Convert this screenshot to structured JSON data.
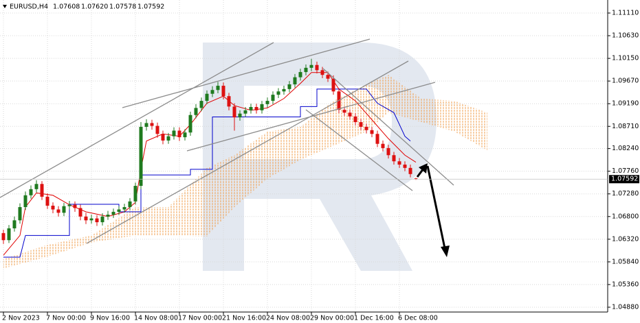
{
  "chart_data": {
    "type": "candlestick",
    "symbol": "EURUSD,H4",
    "ohlc_header": [
      {
        "value": 1.07608,
        "label": "1.07608"
      },
      {
        "value": 1.0762,
        "label": "1.07620"
      },
      {
        "value": 1.07578,
        "label": "1.07578"
      },
      {
        "value": 1.07592,
        "label": "1.07592"
      }
    ],
    "last_price": {
      "value": 1.07592,
      "label": "1.07592"
    },
    "categories": [
      "2 Nov 2023",
      null,
      null,
      null,
      null,
      null,
      null,
      null,
      "7 Nov 00:00",
      null,
      null,
      null,
      null,
      null,
      null,
      null,
      "9 Nov 16:00",
      null,
      null,
      null,
      null,
      null,
      null,
      null,
      "14 Nov 08:00",
      null,
      null,
      null,
      null,
      null,
      null,
      null,
      "17 Nov 00:00",
      null,
      null,
      null,
      null,
      null,
      null,
      null,
      "21 Nov 16:00",
      null,
      null,
      null,
      null,
      null,
      null,
      null,
      "24 Nov 08:00",
      null,
      null,
      null,
      null,
      null,
      null,
      null,
      "29 Nov 00:00",
      null,
      null,
      null,
      null,
      null,
      null,
      null,
      "1 Dec 16:00",
      null,
      null,
      null,
      null,
      null,
      null,
      null,
      "6 Dec 08:00",
      null,
      null,
      null
    ],
    "open": [
      1.0645,
      1.063,
      1.0655,
      1.0672,
      1.07,
      1.0725,
      1.0738,
      1.0749,
      1.0722,
      1.0703,
      1.0695,
      1.0688,
      1.0702,
      1.0705,
      1.0698,
      1.068,
      1.0672,
      1.0676,
      1.0668,
      1.068,
      1.0684,
      1.069,
      1.0695,
      1.07,
      1.0712,
      1.0745,
      1.087,
      1.0878,
      1.0872,
      1.0855,
      1.0841,
      1.085,
      1.0862,
      1.0848,
      1.0858,
      1.0895,
      1.091,
      1.0925,
      1.094,
      1.0948,
      1.0957,
      1.0935,
      1.0913,
      1.089,
      1.0898,
      1.0905,
      1.0912,
      1.0905,
      1.0918,
      1.0925,
      1.0938,
      1.0945,
      1.095,
      1.096,
      1.0975,
      1.0986,
      1.0995,
      1.1001,
      1.099,
      1.098,
      1.0972,
      1.0945,
      1.0906,
      1.09,
      1.0892,
      1.088,
      1.087,
      1.0863,
      1.0855,
      1.0834,
      1.0825,
      1.081,
      1.0797,
      1.079,
      1.0783,
      1.07608
    ],
    "high": [
      1.0652,
      1.0662,
      1.068,
      1.0708,
      1.0733,
      1.0746,
      1.0757,
      1.0755,
      1.0729,
      1.071,
      1.0702,
      1.0709,
      1.0713,
      1.0712,
      1.0705,
      1.0688,
      1.0684,
      1.0683,
      1.0687,
      1.0692,
      1.0697,
      1.0702,
      1.0707,
      1.0719,
      1.0752,
      1.088,
      1.0886,
      1.0885,
      1.0879,
      1.0862,
      1.0857,
      1.0869,
      1.0869,
      1.0865,
      1.0902,
      1.0918,
      1.0932,
      1.0947,
      1.0956,
      1.0965,
      1.0964,
      1.0942,
      1.092,
      1.0905,
      1.0912,
      1.0919,
      1.0919,
      1.0925,
      1.0932,
      1.0945,
      1.0952,
      1.0957,
      1.0967,
      1.0982,
      1.0993,
      1.1002,
      1.1014,
      1.1008,
      1.0997,
      1.0987,
      1.0979,
      1.0952,
      1.0913,
      1.0907,
      1.0899,
      1.0887,
      1.0877,
      1.087,
      1.0862,
      1.0841,
      1.0832,
      1.0817,
      1.0804,
      1.0797,
      1.079,
      1.0762
    ],
    "low": [
      1.0622,
      1.0624,
      1.0648,
      1.0665,
      1.0694,
      1.0718,
      1.0731,
      1.0715,
      1.0696,
      1.0687,
      1.068,
      1.0681,
      1.0695,
      1.069,
      1.0672,
      1.0664,
      1.0665,
      1.066,
      1.0661,
      1.0673,
      1.0677,
      1.0683,
      1.0688,
      1.0693,
      1.0705,
      1.0738,
      1.0862,
      1.0864,
      1.0847,
      1.0833,
      1.0834,
      1.0843,
      1.084,
      1.0841,
      1.0851,
      1.0888,
      1.0903,
      1.0918,
      1.0933,
      1.0941,
      1.0928,
      1.0905,
      1.0862,
      1.0883,
      1.0891,
      1.0898,
      1.0898,
      1.0898,
      1.0911,
      1.0918,
      1.0931,
      1.0938,
      1.0943,
      1.0953,
      1.0968,
      1.0979,
      1.0988,
      1.0983,
      1.0973,
      1.0965,
      1.0938,
      1.0899,
      1.0893,
      1.0885,
      1.0873,
      1.0863,
      1.0856,
      1.0848,
      1.0827,
      1.0818,
      1.0803,
      1.079,
      1.0783,
      1.0776,
      1.0763,
      1.07578
    ],
    "close": [
      1.063,
      1.0655,
      1.0672,
      1.07,
      1.0725,
      1.0738,
      1.0749,
      1.0722,
      1.0703,
      1.0695,
      1.0688,
      1.0702,
      1.0705,
      1.0698,
      1.068,
      1.0672,
      1.0676,
      1.0668,
      1.068,
      1.0684,
      1.069,
      1.0695,
      1.07,
      1.0712,
      1.0745,
      1.087,
      1.0878,
      1.0872,
      1.0855,
      1.0841,
      1.085,
      1.0862,
      1.0848,
      1.0858,
      1.0895,
      1.091,
      1.0925,
      1.094,
      1.0948,
      1.0957,
      1.0935,
      1.0913,
      1.089,
      1.0898,
      1.0905,
      1.0912,
      1.0905,
      1.0918,
      1.0925,
      1.0938,
      1.0945,
      1.095,
      1.096,
      1.0975,
      1.0986,
      1.0995,
      1.1001,
      1.099,
      1.098,
      1.0972,
      1.0945,
      1.0906,
      1.09,
      1.0892,
      1.088,
      1.087,
      1.0863,
      1.0855,
      1.0834,
      1.0825,
      1.081,
      1.0797,
      1.079,
      1.0783,
      1.077,
      1.07592
    ],
    "up_color": "#1f7a1f",
    "down_color": "#dd1111",
    "lines": [
      {
        "color": "#e00000",
        "x": [
          0,
          3,
          4,
          6,
          9,
          12,
          15,
          19,
          22,
          24,
          25,
          26,
          29,
          32,
          34,
          37,
          40,
          42,
          45,
          48,
          51,
          54,
          56,
          59,
          61,
          64,
          67,
          70,
          73,
          75
        ],
        "values": [
          1.0598,
          1.064,
          1.07,
          1.073,
          1.0725,
          1.0705,
          1.069,
          1.068,
          1.069,
          1.071,
          1.078,
          1.084,
          1.0855,
          1.085,
          1.0875,
          1.092,
          1.0935,
          1.0915,
          1.0905,
          1.091,
          1.093,
          1.0962,
          1.0985,
          1.0985,
          1.095,
          1.0925,
          1.0885,
          1.0845,
          1.081,
          1.0795
        ]
      },
      {
        "color": "#0000cc",
        "x": [
          0,
          3,
          4,
          12,
          12,
          21,
          21,
          25,
          25,
          34,
          34,
          38,
          38,
          54,
          54,
          57,
          57,
          66,
          68,
          71,
          73,
          74
        ],
        "values": [
          1.0594,
          1.0594,
          1.064,
          1.064,
          1.0706,
          1.0706,
          1.069,
          1.069,
          1.0768,
          1.0768,
          1.078,
          1.078,
          1.0891,
          1.0891,
          1.0913,
          1.0913,
          1.095,
          1.095,
          1.092,
          1.09,
          1.085,
          1.084
        ]
      }
    ],
    "cloud": {
      "color": "#f0a050",
      "x": [
        0,
        8,
        16,
        24,
        30,
        37,
        42,
        48,
        54,
        60,
        66,
        70,
        76,
        82,
        88
      ],
      "upper": [
        1.059,
        1.062,
        1.064,
        1.07,
        1.07,
        1.0783,
        1.081,
        1.086,
        1.087,
        1.0925,
        1.096,
        1.098,
        1.093,
        1.0925,
        1.09
      ],
      "lower": [
        1.057,
        1.0595,
        1.0625,
        1.064,
        1.064,
        1.0638,
        1.07,
        1.076,
        1.08,
        1.083,
        1.086,
        1.09,
        1.088,
        1.086,
        1.082
      ]
    },
    "ylim": [
      1.04778,
      1.11386
    ],
    "yticks": [
      {
        "value": 1.1111,
        "label": "1.11110"
      },
      {
        "value": 1.1063,
        "label": "1.10630"
      },
      {
        "value": 1.1015,
        "label": "1.10150"
      },
      {
        "value": 1.0967,
        "label": "1.09670"
      },
      {
        "value": 1.0919,
        "label": "1.09190"
      },
      {
        "value": 1.0871,
        "label": "1.08710"
      },
      {
        "value": 1.0824,
        "label": "1.08240"
      },
      {
        "value": 1.0776,
        "label": "1.07760"
      },
      {
        "value": 1.0728,
        "label": "1.07280"
      },
      {
        "value": 1.068,
        "label": "1.06800"
      },
      {
        "value": 1.0632,
        "label": "1.06320"
      },
      {
        "value": 1.0584,
        "label": "1.05840"
      },
      {
        "value": 1.0536,
        "label": "1.05360"
      },
      {
        "value": 1.0488,
        "label": "1.04880"
      }
    ],
    "grid": true
  }
}
